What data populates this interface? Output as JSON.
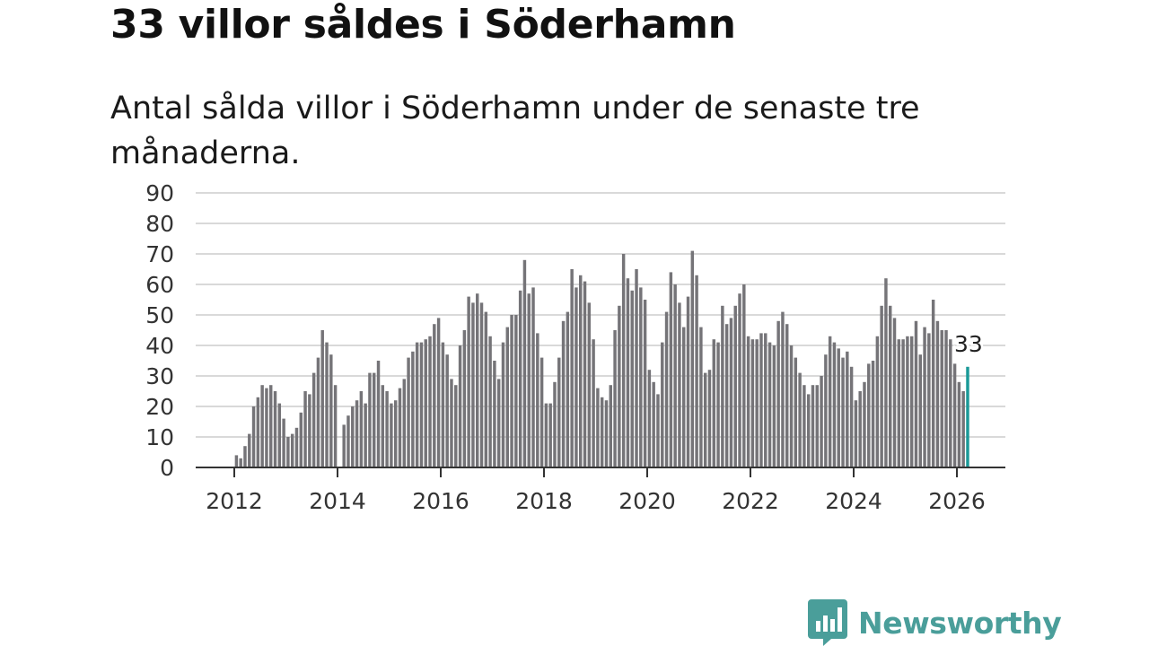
{
  "title": "33 villor såldes i Söderhamn",
  "subtitle": "Antal sålda villor i Söderhamn under de senaste tre månaderna.",
  "brand": {
    "name": "Newsworthy",
    "color": "#4a9e9a"
  },
  "chart_data": {
    "type": "bar",
    "start": "2012-01",
    "ylim": [
      0,
      90
    ],
    "yticks": [
      "90",
      "80",
      "70",
      "60",
      "50",
      "40",
      "30",
      "20",
      "10",
      "0"
    ],
    "xticks": [
      "2012",
      "2014",
      "2016",
      "2018",
      "2020",
      "2022",
      "2024",
      "2026"
    ],
    "bar_color": "#757478",
    "highlight_color": "#1b9a98",
    "highlight_label": "33",
    "values": [
      4,
      3,
      7,
      11,
      20,
      23,
      27,
      26,
      27,
      25,
      21,
      16,
      10,
      11,
      13,
      18,
      25,
      24,
      31,
      36,
      45,
      41,
      37,
      27,
      0,
      14,
      17,
      20,
      22,
      25,
      21,
      31,
      31,
      35,
      27,
      25,
      21,
      22,
      26,
      29,
      36,
      38,
      41,
      41,
      42,
      43,
      47,
      49,
      41,
      37,
      29,
      27,
      40,
      45,
      56,
      54,
      57,
      54,
      51,
      43,
      35,
      29,
      41,
      46,
      50,
      50,
      58,
      68,
      57,
      59,
      44,
      36,
      21,
      21,
      28,
      36,
      48,
      51,
      65,
      59,
      63,
      61,
      54,
      42,
      26,
      23,
      22,
      27,
      45,
      53,
      70,
      62,
      58,
      65,
      59,
      55,
      32,
      28,
      24,
      41,
      51,
      64,
      60,
      54,
      46,
      56,
      71,
      63,
      46,
      31,
      32,
      42,
      41,
      53,
      47,
      49,
      53,
      57,
      60,
      43,
      42,
      42,
      44,
      44,
      41,
      40,
      48,
      51,
      47,
      40,
      36,
      31,
      27,
      24,
      27,
      27,
      30,
      37,
      43,
      41,
      39,
      36,
      38,
      33,
      22,
      25,
      28,
      34,
      35,
      43,
      53,
      62,
      53,
      49,
      42,
      42,
      43,
      43,
      48,
      37,
      46,
      44,
      55,
      48,
      45,
      45,
      42,
      34,
      28,
      25,
      33
    ]
  }
}
